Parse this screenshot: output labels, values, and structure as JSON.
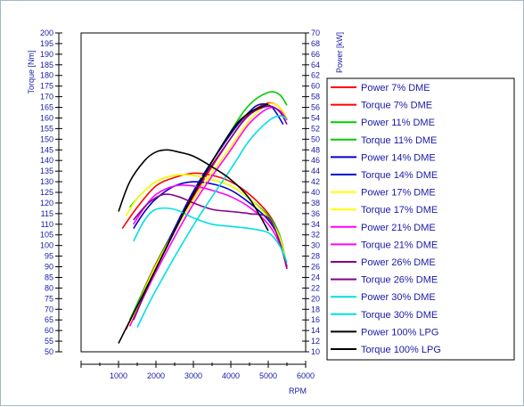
{
  "chart_data": {
    "type": "line",
    "xlabel": "RPM",
    "ylabel": "Torque [Nm]",
    "y2label": "Power [kW]",
    "xlim": [
      0,
      6000
    ],
    "ylim": [
      50,
      200
    ],
    "y2lim": [
      10,
      70
    ],
    "x_ticks": [
      1000,
      2000,
      3000,
      4000,
      5000,
      6000
    ],
    "y_ticks": [
      50,
      55,
      60,
      65,
      70,
      75,
      80,
      85,
      90,
      95,
      100,
      105,
      110,
      115,
      120,
      125,
      130,
      135,
      140,
      145,
      150,
      155,
      160,
      165,
      170,
      175,
      180,
      185,
      190,
      195,
      200
    ],
    "y2_ticks": [
      10,
      12,
      14,
      16,
      18,
      20,
      22,
      24,
      26,
      28,
      30,
      32,
      34,
      36,
      38,
      40,
      42,
      44,
      46,
      48,
      50,
      52,
      54,
      56,
      58,
      60,
      62,
      64,
      66,
      68,
      70
    ],
    "legend_position": "right",
    "series": [
      {
        "name": "Power 7% DME",
        "color": "#ff0000",
        "axis": "power",
        "x": [
          1200,
          2000,
          3000,
          4000,
          4500,
          5000,
          5300,
          5500
        ],
        "y": [
          14.2,
          26.6,
          39.2,
          50.2,
          54.8,
          56.8,
          56.0,
          53.8
        ]
      },
      {
        "name": "Torque 7% DME",
        "color": "#ff0000",
        "axis": "torque",
        "x": [
          1100,
          1500,
          2000,
          2500,
          3000,
          3500,
          4000,
          4500,
          5000,
          5300,
          5500
        ],
        "y": [
          108,
          118,
          128,
          132,
          134,
          133,
          130,
          124,
          115,
          105,
          90
        ]
      },
      {
        "name": "Power 11% DME",
        "color": "#00cc00",
        "axis": "power",
        "x": [
          1300,
          2000,
          3000,
          4000,
          4500,
          5000,
          5300,
          5500
        ],
        "y": [
          16.0,
          26.4,
          39.8,
          51.5,
          56.5,
          58.8,
          58.4,
          56.4
        ]
      },
      {
        "name": "Torque 11% DME",
        "color": "#00cc00",
        "axis": "torque",
        "x": [
          1300,
          1600,
          2000,
          2500,
          3000,
          3500,
          4000,
          4500,
          5000,
          5300,
          5500
        ],
        "y": [
          118,
          124,
          130,
          133,
          133,
          131,
          128,
          122,
          114,
          105,
          90
        ]
      },
      {
        "name": "Power 14% DME",
        "color": "#0000cc",
        "axis": "power",
        "x": [
          1400,
          2000,
          3000,
          4000,
          4500,
          4800,
          5100,
          5400
        ],
        "y": [
          16.0,
          25.8,
          40.2,
          51.0,
          55.2,
          56.6,
          56.0,
          52.8
        ]
      },
      {
        "name": "Torque 14% DME",
        "color": "#0000cc",
        "axis": "torque",
        "x": [
          1400,
          1700,
          2000,
          2500,
          3000,
          3500,
          4000,
          4500,
          5000,
          5300,
          5500
        ],
        "y": [
          108,
          116,
          122,
          128,
          130,
          129,
          126,
          120,
          112,
          103,
          90
        ]
      },
      {
        "name": "Power 17% DME",
        "color": "#ffff00",
        "axis": "power",
        "x": [
          1300,
          2000,
          3000,
          4000,
          4500,
          5000,
          5300,
          5500
        ],
        "y": [
          15.2,
          26.2,
          38.6,
          48.6,
          53.6,
          56.6,
          56.0,
          54.0
        ]
      },
      {
        "name": "Torque 17% DME",
        "color": "#ffff00",
        "axis": "torque",
        "x": [
          1200,
          1500,
          2000,
          2500,
          3000,
          3500,
          4000,
          4500,
          5000,
          5300,
          5500
        ],
        "y": [
          114,
          122,
          130,
          133,
          133,
          131,
          128,
          122,
          113,
          104,
          90
        ]
      },
      {
        "name": "Power 21% DME",
        "color": "#ff00ff",
        "axis": "power",
        "x": [
          1300,
          2000,
          3000,
          4000,
          4500,
          5000,
          5300,
          5500
        ],
        "y": [
          14.8,
          25.0,
          37.8,
          48.0,
          53.0,
          55.8,
          55.4,
          53.6
        ]
      },
      {
        "name": "Torque 21% DME",
        "color": "#ff00ff",
        "axis": "torque",
        "x": [
          1400,
          1700,
          2000,
          2500,
          3000,
          3500,
          4000,
          4500,
          5000,
          5300,
          5500
        ],
        "y": [
          110,
          118,
          124,
          128,
          128,
          126,
          123,
          118,
          110,
          101,
          90
        ]
      },
      {
        "name": "Power 26% DME",
        "color": "#880088",
        "axis": "power",
        "x": [
          1400,
          2000,
          3000,
          4000,
          4500,
          5000,
          5300,
          5500
        ],
        "y": [
          16.0,
          25.6,
          39.6,
          50.2,
          54.6,
          56.2,
          55.2,
          52.8
        ]
      },
      {
        "name": "Torque 26% DME",
        "color": "#880088",
        "axis": "torque",
        "x": [
          1400,
          1800,
          2200,
          2600,
          3000,
          3500,
          4000,
          4500,
          5000,
          5300,
          5500
        ],
        "y": [
          112,
          120,
          124,
          123,
          120,
          117,
          116,
          115,
          113,
          102,
          89
        ]
      },
      {
        "name": "Power 30% DME",
        "color": "#00e0e0",
        "axis": "power",
        "x": [
          1500,
          2000,
          3000,
          4000,
          4500,
          5000,
          5300,
          5500
        ],
        "y": [
          14.6,
          21.6,
          33.8,
          44.4,
          49.8,
          53.4,
          54.4,
          53.8
        ]
      },
      {
        "name": "Torque 30% DME",
        "color": "#00e0e0",
        "axis": "torque",
        "x": [
          1400,
          1700,
          2000,
          2500,
          3000,
          3500,
          4000,
          4500,
          5000,
          5300,
          5500
        ],
        "y": [
          102,
          112,
          117,
          117,
          113,
          110,
          109,
          108,
          106,
          100,
          92
        ]
      },
      {
        "name": "Power 100% LPG",
        "color": "#000000",
        "axis": "power",
        "x": [
          1000,
          2000,
          3000,
          4000,
          4500,
          5000
        ],
        "y": [
          11.6,
          25.6,
          39.6,
          51.4,
          55.0,
          56.6
        ]
      },
      {
        "name": "Torque 100% LPG",
        "color": "#000000",
        "axis": "torque",
        "x": [
          1000,
          1300,
          1700,
          2000,
          2300,
          2600,
          3000,
          3500,
          4000,
          4500,
          5000
        ],
        "y": [
          116,
          130,
          140,
          144,
          145,
          144,
          142,
          137,
          131,
          122,
          107
        ]
      }
    ]
  }
}
